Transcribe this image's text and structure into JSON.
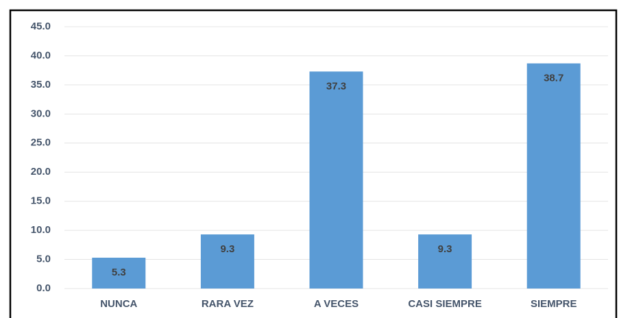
{
  "chart_data": {
    "type": "bar",
    "categories": [
      "NUNCA",
      "RARA VEZ",
      "A VECES",
      "CASI SIEMPRE",
      "SIEMPRE"
    ],
    "values": [
      5.3,
      9.3,
      37.3,
      9.3,
      38.7
    ],
    "color": "#5b9bd5",
    "ylim": [
      0,
      45
    ],
    "yticks": [
      {
        "value": 0,
        "label": "0.0"
      },
      {
        "value": 5,
        "label": "5.0"
      },
      {
        "value": 10,
        "label": "10.0"
      },
      {
        "value": 15,
        "label": "15.0"
      },
      {
        "value": 20,
        "label": "20.0"
      },
      {
        "value": 25,
        "label": "25.0"
      },
      {
        "value": 30,
        "label": "30.0"
      },
      {
        "value": 35,
        "label": "35.0"
      },
      {
        "value": 40,
        "label": "40.0"
      },
      {
        "value": 45,
        "label": "45.0"
      }
    ],
    "grid": true
  }
}
